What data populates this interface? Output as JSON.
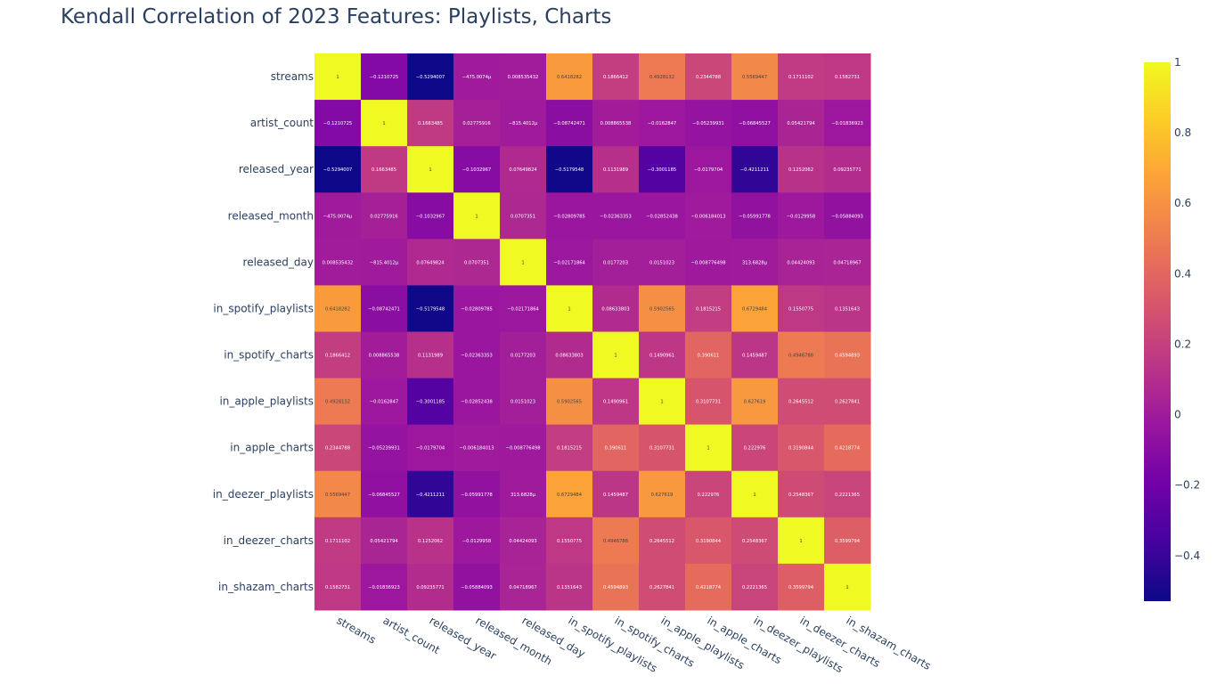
{
  "chart_data": {
    "type": "heatmap",
    "title": "Kendall Correlation of 2023 Features: Playlists, Charts",
    "rows": [
      "streams",
      "artist_count",
      "released_year",
      "released_month",
      "released_day",
      "in_spotify_playlists",
      "in_spotify_charts",
      "in_apple_playlists",
      "in_apple_charts",
      "in_deezer_playlists",
      "in_deezer_charts",
      "in_shazam_charts"
    ],
    "columns": [
      "streams",
      "artist_count",
      "released_year",
      "released_month",
      "released_day",
      "in_spotify_playlists",
      "in_spotify_charts",
      "in_apple_playlists",
      "in_apple_charts",
      "in_deezer_playlists",
      "in_deezer_charts",
      "in_shazam_charts"
    ],
    "values": [
      [
        1,
        -0.1210725,
        -0.5294007,
        -0.0004750074,
        0.008535432,
        0.6418282,
        0.1866412,
        0.4928132,
        0.2344788,
        0.5569447,
        0.1711102,
        0.1582731
      ],
      [
        -0.1210725,
        1,
        0.1663485,
        0.02775916,
        -0.0008154012,
        -0.08742471,
        0.008865538,
        -0.0162847,
        -0.05239931,
        -0.06845527,
        0.05421794,
        -0.01836923
      ],
      [
        -0.5294007,
        0.1663485,
        1,
        -0.1032967,
        0.07649824,
        -0.5179548,
        0.1131989,
        -0.3001185,
        -0.0179704,
        -0.4211211,
        0.1252062,
        0.09235771
      ],
      [
        -0.0004750074,
        0.02775916,
        -0.1032967,
        1,
        0.0707351,
        -0.02809785,
        -0.02363353,
        -0.02852438,
        -0.006184013,
        -0.05991778,
        -0.0129958,
        -0.05884093
      ],
      [
        0.008535432,
        -0.0008154012,
        0.07649824,
        0.0707351,
        1,
        -0.02171864,
        0.0177203,
        0.0151023,
        -0.008776498,
        0.0003136828,
        0.04424093,
        0.04718967
      ],
      [
        0.6418282,
        -0.08742471,
        -0.5179548,
        -0.02809785,
        -0.02171864,
        1,
        0.08633803,
        0.5902565,
        0.1815215,
        0.6729484,
        0.1550775,
        0.1351643
      ],
      [
        0.1866412,
        0.008865538,
        0.1131989,
        -0.02363353,
        0.0177203,
        0.08633803,
        1,
        0.1490961,
        0.390611,
        0.1459487,
        0.4946788,
        0.4594893
      ],
      [
        0.4928132,
        -0.0162847,
        -0.3001185,
        -0.02852438,
        0.0151023,
        0.5902565,
        0.1490961,
        1,
        0.3107731,
        0.627619,
        0.2645512,
        0.2627841
      ],
      [
        0.2344788,
        -0.05239931,
        -0.0179704,
        -0.006184013,
        -0.008776498,
        0.1815215,
        0.390611,
        0.3107731,
        1,
        0.222976,
        0.3190844,
        0.4218774
      ],
      [
        0.5569447,
        -0.06845527,
        -0.4211211,
        -0.05991778,
        0.0003136828,
        0.6729484,
        0.1459487,
        0.627619,
        0.222976,
        1,
        0.2548367,
        0.2221365
      ],
      [
        0.1711102,
        0.05421794,
        0.1252062,
        -0.0129958,
        0.04424093,
        0.1550775,
        0.4946788,
        0.2645512,
        0.3190844,
        0.2548367,
        1,
        0.3599794
      ],
      [
        0.1582731,
        -0.01836923,
        0.09235771,
        -0.05884093,
        0.04718967,
        0.1351643,
        0.4594893,
        0.2627841,
        0.4218774,
        0.2221365,
        0.3599794,
        1
      ]
    ],
    "cell_labels": [
      [
        "1",
        "−0.1210725",
        "−0.5294007",
        "−475.0074μ",
        "0.008535432",
        "0.6418282",
        "0.1866412",
        "0.4928132",
        "0.2344788",
        "0.5569447",
        "0.1711102",
        "0.1582731"
      ],
      [
        "−0.1210725",
        "1",
        "0.1663485",
        "0.02775916",
        "−815.4012μ",
        "−0.08742471",
        "0.008865538",
        "−0.0162847",
        "−0.05239931",
        "−0.06845527",
        "0.05421794",
        "−0.01836923"
      ],
      [
        "−0.5294007",
        "0.1663485",
        "1",
        "−0.1032967",
        "0.07649824",
        "−0.5179548",
        "0.1131989",
        "−0.3001185",
        "−0.0179704",
        "−0.4211211",
        "0.1252062",
        "0.09235771"
      ],
      [
        "−475.0074μ",
        "0.02775916",
        "−0.1032967",
        "1",
        "0.0707351",
        "−0.02809785",
        "−0.02363353",
        "−0.02852438",
        "−0.006184013",
        "−0.05991778",
        "−0.0129958",
        "−0.05884093"
      ],
      [
        "0.008535432",
        "−815.4012μ",
        "0.07649824",
        "0.0707351",
        "1",
        "−0.02171864",
        "0.0177203",
        "0.0151023",
        "−0.008776498",
        "313.6828μ",
        "0.04424093",
        "0.04718967"
      ],
      [
        "0.6418282",
        "−0.08742471",
        "−0.5179548",
        "−0.02809785",
        "−0.02171864",
        "1",
        "0.08633803",
        "0.5902565",
        "0.1815215",
        "0.6729484",
        "0.1550775",
        "0.1351643"
      ],
      [
        "0.1866412",
        "0.008865538",
        "0.1131989",
        "−0.02363353",
        "0.0177203",
        "0.08633803",
        "1",
        "0.1490961",
        "0.390611",
        "0.1459487",
        "0.4946788",
        "0.4594893"
      ],
      [
        "0.4928132",
        "−0.0162847",
        "−0.3001185",
        "−0.02852438",
        "0.0151023",
        "0.5902565",
        "0.1490961",
        "1",
        "0.3107731",
        "0.627619",
        "0.2645512",
        "0.2627841"
      ],
      [
        "0.2344788",
        "−0.05239931",
        "−0.0179704",
        "−0.006184013",
        "−0.008776498",
        "0.1815215",
        "0.390611",
        "0.3107731",
        "1",
        "0.222976",
        "0.3190844",
        "0.4218774"
      ],
      [
        "0.5569447",
        "−0.06845527",
        "−0.4211211",
        "−0.05991778",
        "313.6828μ",
        "0.6729484",
        "0.1459487",
        "0.627619",
        "0.222976",
        "1",
        "0.2548367",
        "0.2221365"
      ],
      [
        "0.1711102",
        "0.05421794",
        "0.1252062",
        "−0.0129958",
        "0.04424093",
        "0.1550775",
        "0.4946788",
        "0.2645512",
        "0.3190844",
        "0.2548367",
        "1",
        "0.3599794"
      ],
      [
        "0.1582731",
        "−0.01836923",
        "0.09235771",
        "−0.05884093",
        "0.04718967",
        "0.1351643",
        "0.4594893",
        "0.2627841",
        "0.4218774",
        "0.2221365",
        "0.3599794",
        "1"
      ]
    ],
    "zrange": [
      -0.5294007,
      1
    ],
    "colorscale": "plasma",
    "colorbar": {
      "tick_labels": [
        "1",
        "0.8",
        "0.6",
        "0.4",
        "0.2",
        "0",
        "−0.2",
        "−0.4"
      ],
      "tick_values": [
        1,
        0.8,
        0.6,
        0.4,
        0.2,
        0,
        -0.2,
        -0.4
      ]
    },
    "legend": "colorbar-right"
  }
}
